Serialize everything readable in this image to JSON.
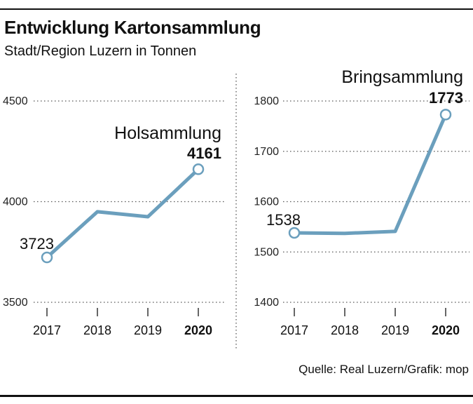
{
  "title": "Entwicklung Kartonsammlung",
  "subtitle": "Stadt/Region Luzern in Tonnen",
  "source": "Quelle: Real Luzern/Grafik: mop",
  "colors": {
    "line": "#6b9fbd",
    "grid": "#555555",
    "text": "#111111"
  },
  "chart_data": [
    {
      "type": "line",
      "series_label": "Holsammlung",
      "categories": [
        "2017",
        "2018",
        "2019",
        "2020"
      ],
      "values": [
        3723,
        3950,
        3925,
        4161
      ],
      "data_labels": [
        "3723",
        "",
        "",
        "4161"
      ],
      "yticks": [
        "3500",
        "4000",
        "4500"
      ],
      "ylim": [
        3500,
        4500
      ],
      "bold_category": "2020",
      "grid": true
    },
    {
      "type": "line",
      "series_label": "Bringsammlung",
      "categories": [
        "2017",
        "2018",
        "2019",
        "2020"
      ],
      "values": [
        1538,
        1537,
        1541,
        1773
      ],
      "data_labels": [
        "1538",
        "",
        "",
        "1773"
      ],
      "yticks": [
        "1400",
        "1500",
        "1600",
        "1700",
        "1800"
      ],
      "ylim": [
        1400,
        1800
      ],
      "bold_category": "2020",
      "grid": true
    }
  ]
}
